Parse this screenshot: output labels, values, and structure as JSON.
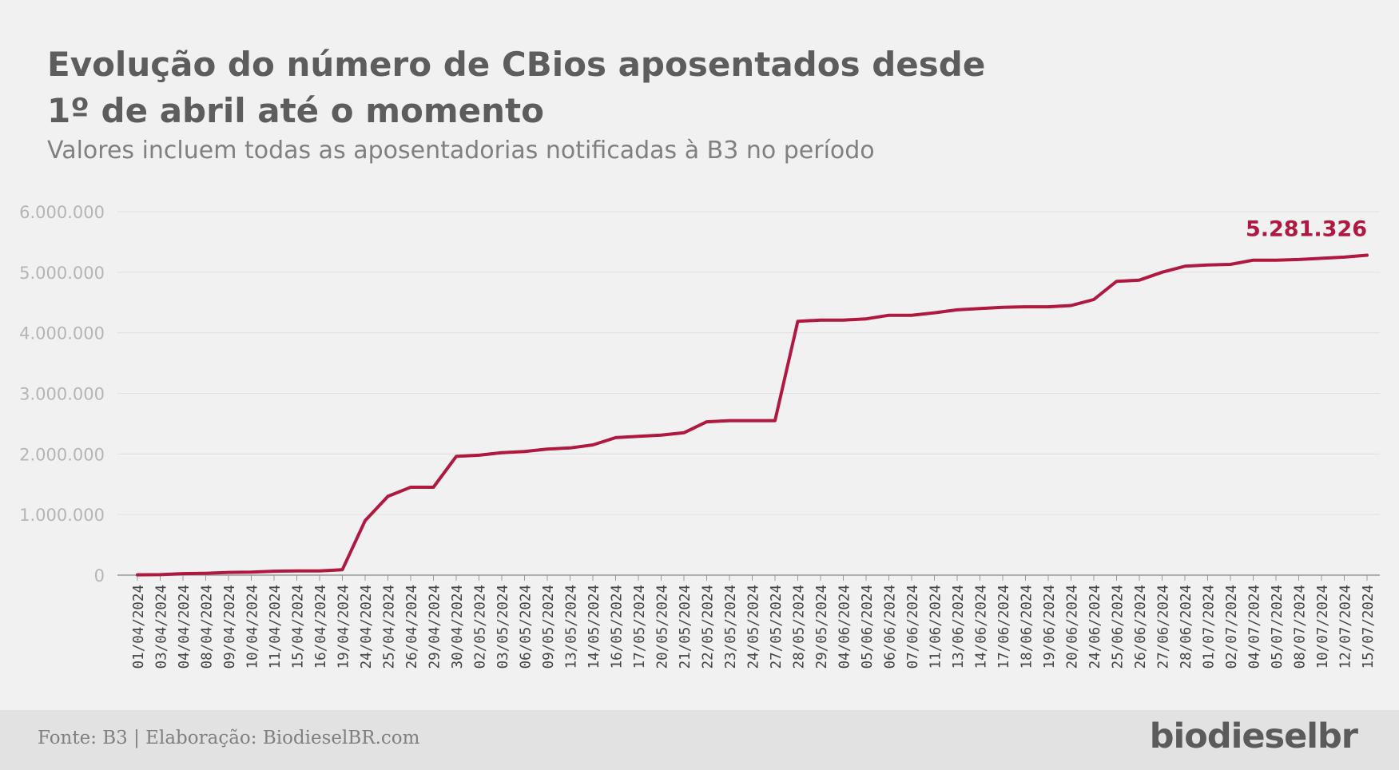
{
  "title_lines": [
    "Evolução do número de CBios aposentados desde",
    "1º de abril até o momento"
  ],
  "subtitle": "Valores incluem todas as aposentadorias notificadas à B3 no período",
  "footer": {
    "source": "Fonte: B3 | Elaboração: BiodieselBR.com",
    "logo": "biodieselbr"
  },
  "colors": {
    "line": "#b0183f",
    "grid": "#e0e0e0",
    "tick": "#b5b5b5",
    "axis_label": "#444444"
  },
  "chart_data": {
    "type": "line",
    "title": "Evolução do número de CBios aposentados desde 1º de abril até o momento",
    "subtitle": "Valores incluem todas as aposentadorias notificadas à B3 no período",
    "xlabel": "",
    "ylabel": "",
    "ylim": [
      0,
      6000000
    ],
    "yticks": [
      0,
      1000000,
      2000000,
      3000000,
      4000000,
      5000000,
      6000000
    ],
    "ytick_labels": [
      "0",
      "1.000.000",
      "2.000.000",
      "3.000.000",
      "4.000.000",
      "5.000.000",
      "6.000.000"
    ],
    "grid": true,
    "categories": [
      "01/04/2024",
      "03/04/2024",
      "04/04/2024",
      "08/04/2024",
      "09/04/2024",
      "10/04/2024",
      "11/04/2024",
      "15/04/2024",
      "16/04/2024",
      "19/04/2024",
      "24/04/2024",
      "25/04/2024",
      "26/04/2024",
      "29/04/2024",
      "30/04/2024",
      "02/05/2024",
      "03/05/2024",
      "06/05/2024",
      "09/05/2024",
      "13/05/2024",
      "14/05/2024",
      "16/05/2024",
      "17/05/2024",
      "20/05/2024",
      "21/05/2024",
      "22/05/2024",
      "23/05/2024",
      "24/05/2024",
      "27/05/2024",
      "28/05/2024",
      "29/05/2024",
      "04/06/2024",
      "05/06/2024",
      "06/06/2024",
      "07/06/2024",
      "11/06/2024",
      "13/06/2024",
      "14/06/2024",
      "17/06/2024",
      "18/06/2024",
      "19/06/2024",
      "20/06/2024",
      "24/06/2024",
      "25/06/2024",
      "26/06/2024",
      "27/06/2024",
      "28/06/2024",
      "01/07/2024",
      "02/07/2024",
      "04/07/2024",
      "05/07/2024",
      "08/07/2024",
      "10/07/2024",
      "12/07/2024",
      "15/07/2024"
    ],
    "series": [
      {
        "values": [
          5000,
          8000,
          25000,
          30000,
          45000,
          50000,
          65000,
          68000,
          70000,
          90000,
          900000,
          1300000,
          1450000,
          1450000,
          1960000,
          1980000,
          2020000,
          2040000,
          2080000,
          2100000,
          2150000,
          2270000,
          2290000,
          2310000,
          2350000,
          2530000,
          2550000,
          2550000,
          2550000,
          4190000,
          4210000,
          4210000,
          4230000,
          4290000,
          4290000,
          4330000,
          4380000,
          4400000,
          4420000,
          4430000,
          4430000,
          4450000,
          4550000,
          4850000,
          4870000,
          5000000,
          5100000,
          5120000,
          5130000,
          5200000,
          5200000,
          5210000,
          5230000,
          5250000,
          5281326
        ]
      }
    ],
    "annotations": [
      {
        "category": "15/07/2024",
        "text": "5.281.326"
      }
    ]
  }
}
